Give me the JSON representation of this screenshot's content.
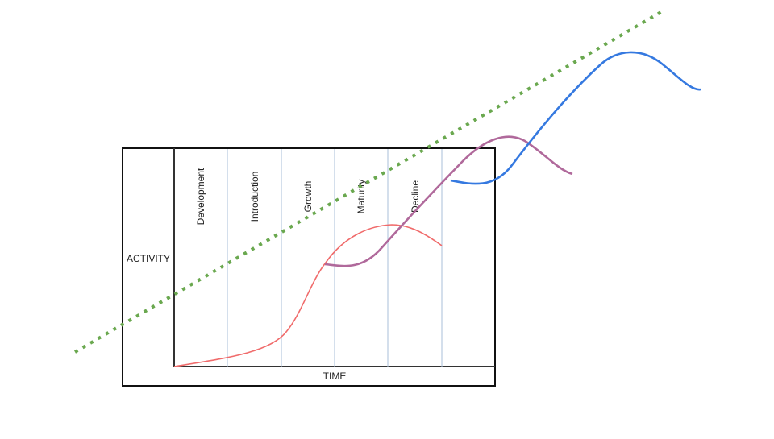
{
  "diagram": {
    "y_axis_label": "ACTIVITY",
    "x_axis_label": "TIME",
    "stages": [
      "Development",
      "Introduction",
      "Growth",
      "Maturity",
      "Decline"
    ],
    "colors": {
      "frame": "#111111",
      "divider": "#a9bfd9",
      "curve_1": "#f06b6b",
      "curve_2": "#b0699b",
      "curve_3": "#3579e0",
      "trend": "#6aa84f"
    }
  }
}
